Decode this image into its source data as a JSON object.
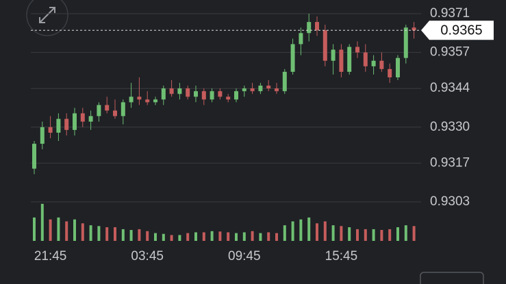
{
  "chart_data": {
    "type": "candlestick",
    "categories": [
      null,
      null,
      "21:45",
      null,
      null,
      null,
      null,
      null,
      null,
      null,
      null,
      null,
      null,
      null,
      "03:45",
      null,
      null,
      null,
      null,
      null,
      null,
      null,
      null,
      null,
      null,
      null,
      "09:45",
      null,
      null,
      null,
      null,
      null,
      null,
      null,
      null,
      null,
      null,
      null,
      "15:45",
      null,
      null,
      null,
      null,
      null,
      null,
      null,
      null,
      null
    ],
    "open": [
      0.9315,
      0.9324,
      0.933,
      0.9328,
      0.9333,
      0.9329,
      0.9335,
      0.9332,
      0.9334,
      0.9338,
      0.9336,
      0.9334,
      0.9339,
      0.9341,
      0.934,
      0.9339,
      0.934,
      0.9344,
      0.9342,
      0.9344,
      0.9341,
      0.9343,
      0.934,
      0.9343,
      0.9341,
      0.934,
      0.9343,
      0.9344,
      0.9343,
      0.9345,
      0.9344,
      0.9343,
      0.935,
      0.936,
      0.9364,
      0.9368,
      0.9365,
      0.9354,
      0.9358,
      0.935,
      0.9359,
      0.9357,
      0.9352,
      0.9354,
      0.9351,
      0.9348,
      0.9355,
      0.9366
    ],
    "high": [
      0.9325,
      0.9332,
      0.9334,
      0.9335,
      0.9335,
      0.9337,
      0.9337,
      0.9336,
      0.9339,
      0.9341,
      0.934,
      0.934,
      0.9346,
      0.9348,
      0.9343,
      0.9341,
      0.9345,
      0.9347,
      0.9346,
      0.9345,
      0.9345,
      0.9344,
      0.9344,
      0.9344,
      0.9342,
      0.9344,
      0.9345,
      0.9346,
      0.9346,
      0.9347,
      0.9346,
      0.9351,
      0.9362,
      0.9366,
      0.9371,
      0.937,
      0.9367,
      0.936,
      0.936,
      0.936,
      0.9361,
      0.936,
      0.9356,
      0.9357,
      0.9353,
      0.9356,
      0.9367,
      0.9368
    ],
    "low": [
      0.9313,
      0.9322,
      0.9326,
      0.9325,
      0.9327,
      0.9327,
      0.933,
      0.9329,
      0.9332,
      0.9335,
      0.9333,
      0.9331,
      0.9337,
      0.9338,
      0.9338,
      0.9338,
      0.9338,
      0.9341,
      0.934,
      0.934,
      0.9339,
      0.9338,
      0.9339,
      0.934,
      0.9339,
      0.9339,
      0.9341,
      0.9342,
      0.9342,
      0.9343,
      0.9342,
      0.9342,
      0.9349,
      0.9356,
      0.9361,
      0.9363,
      0.9352,
      0.9349,
      0.9348,
      0.9349,
      0.9355,
      0.935,
      0.9349,
      0.935,
      0.9346,
      0.9347,
      0.9353,
      0.9362
    ],
    "close": [
      0.9324,
      0.933,
      0.9328,
      0.9333,
      0.9329,
      0.9335,
      0.9332,
      0.9334,
      0.9338,
      0.9336,
      0.9334,
      0.9339,
      0.9341,
      0.934,
      0.9339,
      0.934,
      0.9344,
      0.9342,
      0.9344,
      0.9341,
      0.9343,
      0.934,
      0.9343,
      0.9341,
      0.934,
      0.9343,
      0.9344,
      0.9343,
      0.9345,
      0.9344,
      0.9343,
      0.935,
      0.936,
      0.9364,
      0.9368,
      0.9365,
      0.9354,
      0.9358,
      0.935,
      0.9359,
      0.9357,
      0.9352,
      0.9354,
      0.9351,
      0.9348,
      0.9355,
      0.9366,
      0.9365
    ],
    "volume": [
      60,
      95,
      55,
      60,
      50,
      55,
      45,
      40,
      38,
      35,
      35,
      30,
      28,
      30,
      25,
      20,
      18,
      15,
      15,
      20,
      22,
      22,
      25,
      24,
      22,
      20,
      22,
      25,
      20,
      22,
      20,
      40,
      50,
      55,
      60,
      45,
      50,
      40,
      38,
      35,
      30,
      30,
      30,
      28,
      30,
      35,
      40,
      38
    ],
    "up_color": "#6fbf73",
    "down_color": "#c65c5c",
    "ylim": [
      0.9303,
      0.9371
    ],
    "yticks": [
      0.9303,
      {
        "value": 0.9317,
        "label": "0.9317"
      },
      {
        "value": 0.933,
        "label": "0.9330"
      },
      0.9344,
      0.9357,
      0.9371
    ],
    "vlim": [
      0,
      100
    ],
    "last_price": 0.9365,
    "grid": true
  }
}
